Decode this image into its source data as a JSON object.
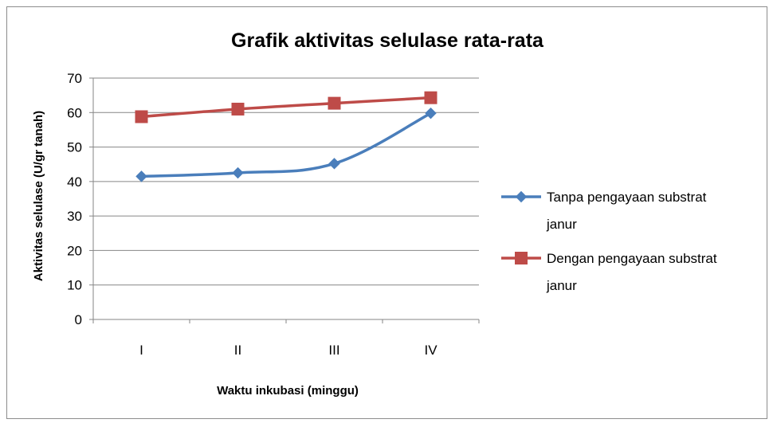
{
  "chart_data": {
    "type": "line",
    "title": "Grafik aktivitas selulase rata-rata",
    "xlabel": "Waktu inkubasi (minggu)",
    "ylabel": "Aktivitas selulase (U/gr tanah)",
    "categories": [
      "I",
      "II",
      "III",
      "IV"
    ],
    "ylim": [
      0,
      70
    ],
    "yticks": [
      0,
      10,
      20,
      30,
      40,
      50,
      60,
      70
    ],
    "grid": true,
    "legend_position": "right",
    "series": [
      {
        "name": "Tanpa pengayaan substrat janur",
        "legend_lines": [
          "Tanpa pengayaan substrat",
          "janur"
        ],
        "values": [
          41.5,
          42.5,
          45.2,
          59.8
        ],
        "color": "#4a7ebb",
        "marker": "diamond"
      },
      {
        "name": "Dengan pengayaan substrat janur",
        "legend_lines": [
          "Dengan pengayaan substrat",
          "janur"
        ],
        "values": [
          58.8,
          61.0,
          62.7,
          64.3
        ],
        "color": "#be4b48",
        "marker": "square"
      }
    ]
  }
}
